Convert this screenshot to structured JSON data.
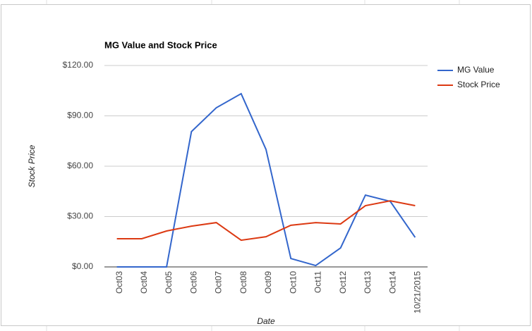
{
  "chart_data": {
    "type": "line",
    "title": "MG Value and Stock Price",
    "x_label": "Date",
    "y_label": "Stock Price",
    "categories": [
      "Oct03",
      "Oct04",
      "Oct05",
      "Oct06",
      "Oct07",
      "Oct08",
      "Oct09",
      "Oct10",
      "Oct11",
      "Oct12",
      "Oct13",
      "Oct14",
      "10/21/2015"
    ],
    "series": [
      {
        "name": "MG Value",
        "color": "#3366cc",
        "values": [
          0,
          0,
          0,
          80.6,
          94.8,
          103.2,
          70,
          5,
          0.8,
          11.3,
          42.8,
          39,
          17.6
        ]
      },
      {
        "name": "Stock Price",
        "color": "#dc3912",
        "values": [
          16.8,
          16.8,
          21.4,
          24.3,
          26.4,
          15.9,
          18,
          24.8,
          26.4,
          25.6,
          36.5,
          39.4,
          36.5
        ]
      }
    ],
    "ylim": [
      0,
      120
    ],
    "yticks": [
      {
        "value": 0,
        "label": "$0.00"
      },
      {
        "value": 30,
        "label": "$30.00"
      },
      {
        "value": 60,
        "label": "$60.00"
      },
      {
        "value": 90,
        "label": "$90.00"
      },
      {
        "value": 120,
        "label": "$120.00"
      }
    ],
    "grid": true,
    "legend": "right"
  }
}
